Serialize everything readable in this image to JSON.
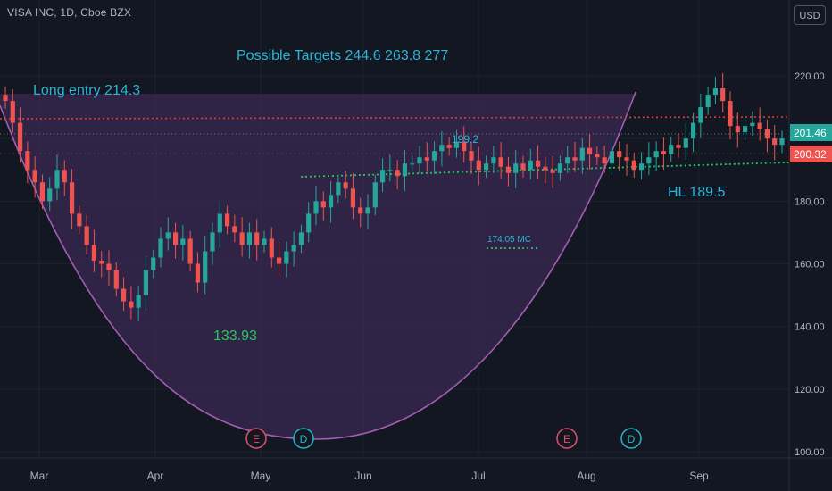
{
  "header": {
    "symbol": "VISA INC, 1D, Cboe BZX",
    "currency": "USD"
  },
  "colors": {
    "background": "#131722",
    "up": "#26a69a",
    "down": "#ef5350",
    "cup_fill": "#3a2a52",
    "cup_stroke": "#a15db0",
    "target_text": "#2bb5d6",
    "green_text": "#26c75c"
  },
  "annotations": {
    "targets": "Possible Targets   244.6  263.8  277",
    "long_entry": "Long entry 214.3",
    "level_199": "199.2",
    "hl": "HL 189.5",
    "mc": "174.05 MC",
    "low": "133.93"
  },
  "events": [
    {
      "label": "E",
      "date": "May"
    },
    {
      "label": "D",
      "date": "May"
    },
    {
      "label": "E",
      "date": "Jul"
    },
    {
      "label": "D",
      "date": "Aug"
    }
  ],
  "chart_data": {
    "type": "candlestick",
    "title": "VISA INC, 1D, Cboe BZX",
    "y_axis": {
      "ticks": [
        100,
        120,
        140,
        160,
        180,
        200,
        220
      ],
      "range": [
        100,
        245
      ],
      "side": "right",
      "unit": "USD"
    },
    "x_axis": {
      "ticks": [
        "Mar",
        "Apr",
        "May",
        "Jun",
        "Jul",
        "Aug",
        "Sep"
      ]
    },
    "price_labels": [
      {
        "value": "201.46",
        "color": "#26a69a"
      },
      {
        "value": "200.32",
        "color": "#ef5350"
      }
    ],
    "levels": [
      {
        "label": "Long entry 214.3",
        "value": 214.3,
        "style": "shaded-box"
      },
      {
        "label": "red dotted resistance",
        "value": 205.6,
        "style": "dotted",
        "color": "#ef5350"
      },
      {
        "label": "199.2",
        "value": 199.2,
        "style": "dotted"
      },
      {
        "label": "HL 189.5",
        "value": 189.5,
        "style": "dotted-rising",
        "color": "#26c75c"
      },
      {
        "label": "174.05 MC",
        "value": 174.05,
        "style": "dotted",
        "color": "#26c75c"
      }
    ],
    "cup_low": 133.93,
    "targets": [
      244.6,
      263.8,
      277
    ],
    "close_series": [
      212,
      205,
      196,
      190,
      186,
      180,
      184,
      190,
      186,
      176,
      172,
      166,
      161,
      160,
      158,
      152,
      148,
      146,
      150,
      158,
      162,
      168,
      170,
      166,
      168,
      160,
      154,
      164,
      170,
      176,
      172,
      170,
      166,
      170,
      166,
      168,
      162,
      160,
      164,
      166,
      170,
      176,
      180,
      178,
      182,
      186,
      184,
      178,
      176,
      178,
      186,
      190,
      190,
      188,
      192,
      192,
      194,
      193,
      196,
      198,
      197,
      199,
      196,
      193,
      190,
      192,
      194,
      191,
      189,
      192,
      190,
      193,
      191,
      190,
      189,
      192,
      194,
      193,
      197,
      195,
      194,
      192,
      196,
      194,
      193,
      190,
      192,
      194,
      196,
      195,
      198,
      197,
      200,
      205,
      210,
      214,
      216,
      212,
      204,
      202,
      204,
      205,
      203,
      200,
      198,
      200
    ]
  }
}
